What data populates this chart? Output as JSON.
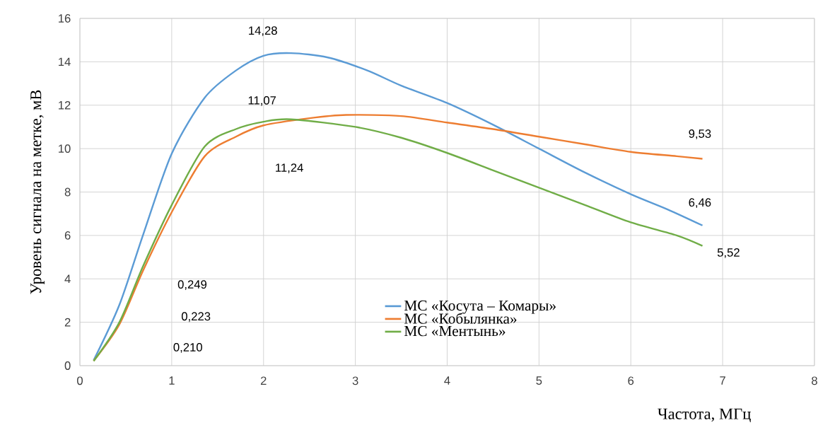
{
  "chart_data": {
    "type": "line",
    "xlabel": "Частота, МГц",
    "ylabel": "Уровень сигнала на метке, мВ",
    "xlim": [
      0,
      8
    ],
    "xticks": [
      0,
      1,
      2,
      3,
      4,
      5,
      6,
      7,
      8
    ],
    "ylim": [
      0,
      16
    ],
    "yticks": [
      0,
      2,
      4,
      6,
      8,
      10,
      12,
      14,
      16
    ],
    "grid": true,
    "legend": "bottom",
    "marker": "none",
    "line_style": "solid",
    "series": [
      {
        "name": "МС «Косута – Комары»",
        "color": "#5b9bd5",
        "x": [
          0.15,
          0.43,
          0.69,
          1.0,
          1.36,
          1.7,
          2.0,
          2.3,
          2.7,
          3.13,
          3.5,
          4.0,
          4.5,
          5.0,
          5.5,
          6.0,
          6.4,
          6.78
        ],
        "values": [
          0.249,
          2.8,
          6.05,
          9.77,
          12.35,
          13.6,
          14.28,
          14.4,
          14.2,
          13.6,
          12.9,
          12.1,
          11.1,
          10.0,
          8.9,
          7.9,
          7.2,
          6.46
        ]
      },
      {
        "name": "МС «Кобылянка»",
        "color": "#ed7d31",
        "x": [
          0.15,
          0.43,
          0.69,
          1.0,
          1.36,
          1.7,
          2.0,
          2.5,
          2.9,
          3.5,
          4.0,
          4.5,
          5.0,
          5.5,
          6.0,
          6.5,
          6.78
        ],
        "values": [
          0.223,
          1.9,
          4.4,
          7.07,
          9.65,
          10.55,
          11.07,
          11.4,
          11.55,
          11.5,
          11.2,
          10.9,
          10.55,
          10.2,
          9.85,
          9.65,
          9.53
        ]
      },
      {
        "name": "МС «Ментынь»",
        "color": "#70ad47",
        "x": [
          0.15,
          0.43,
          0.69,
          1.0,
          1.36,
          1.7,
          2.0,
          2.3,
          3.0,
          3.5,
          4.0,
          4.5,
          5.0,
          5.5,
          6.0,
          6.5,
          6.78
        ],
        "values": [
          0.21,
          2.0,
          4.6,
          7.4,
          10.1,
          10.9,
          11.24,
          11.35,
          11.0,
          10.5,
          9.8,
          9.0,
          8.2,
          7.4,
          6.6,
          6.0,
          5.52
        ]
      }
    ],
    "annotations": [
      "0,249",
      "0,223",
      "0,210",
      "14,28",
      "11,07",
      "11,24",
      "9,53",
      "6,46",
      "5,52"
    ]
  }
}
